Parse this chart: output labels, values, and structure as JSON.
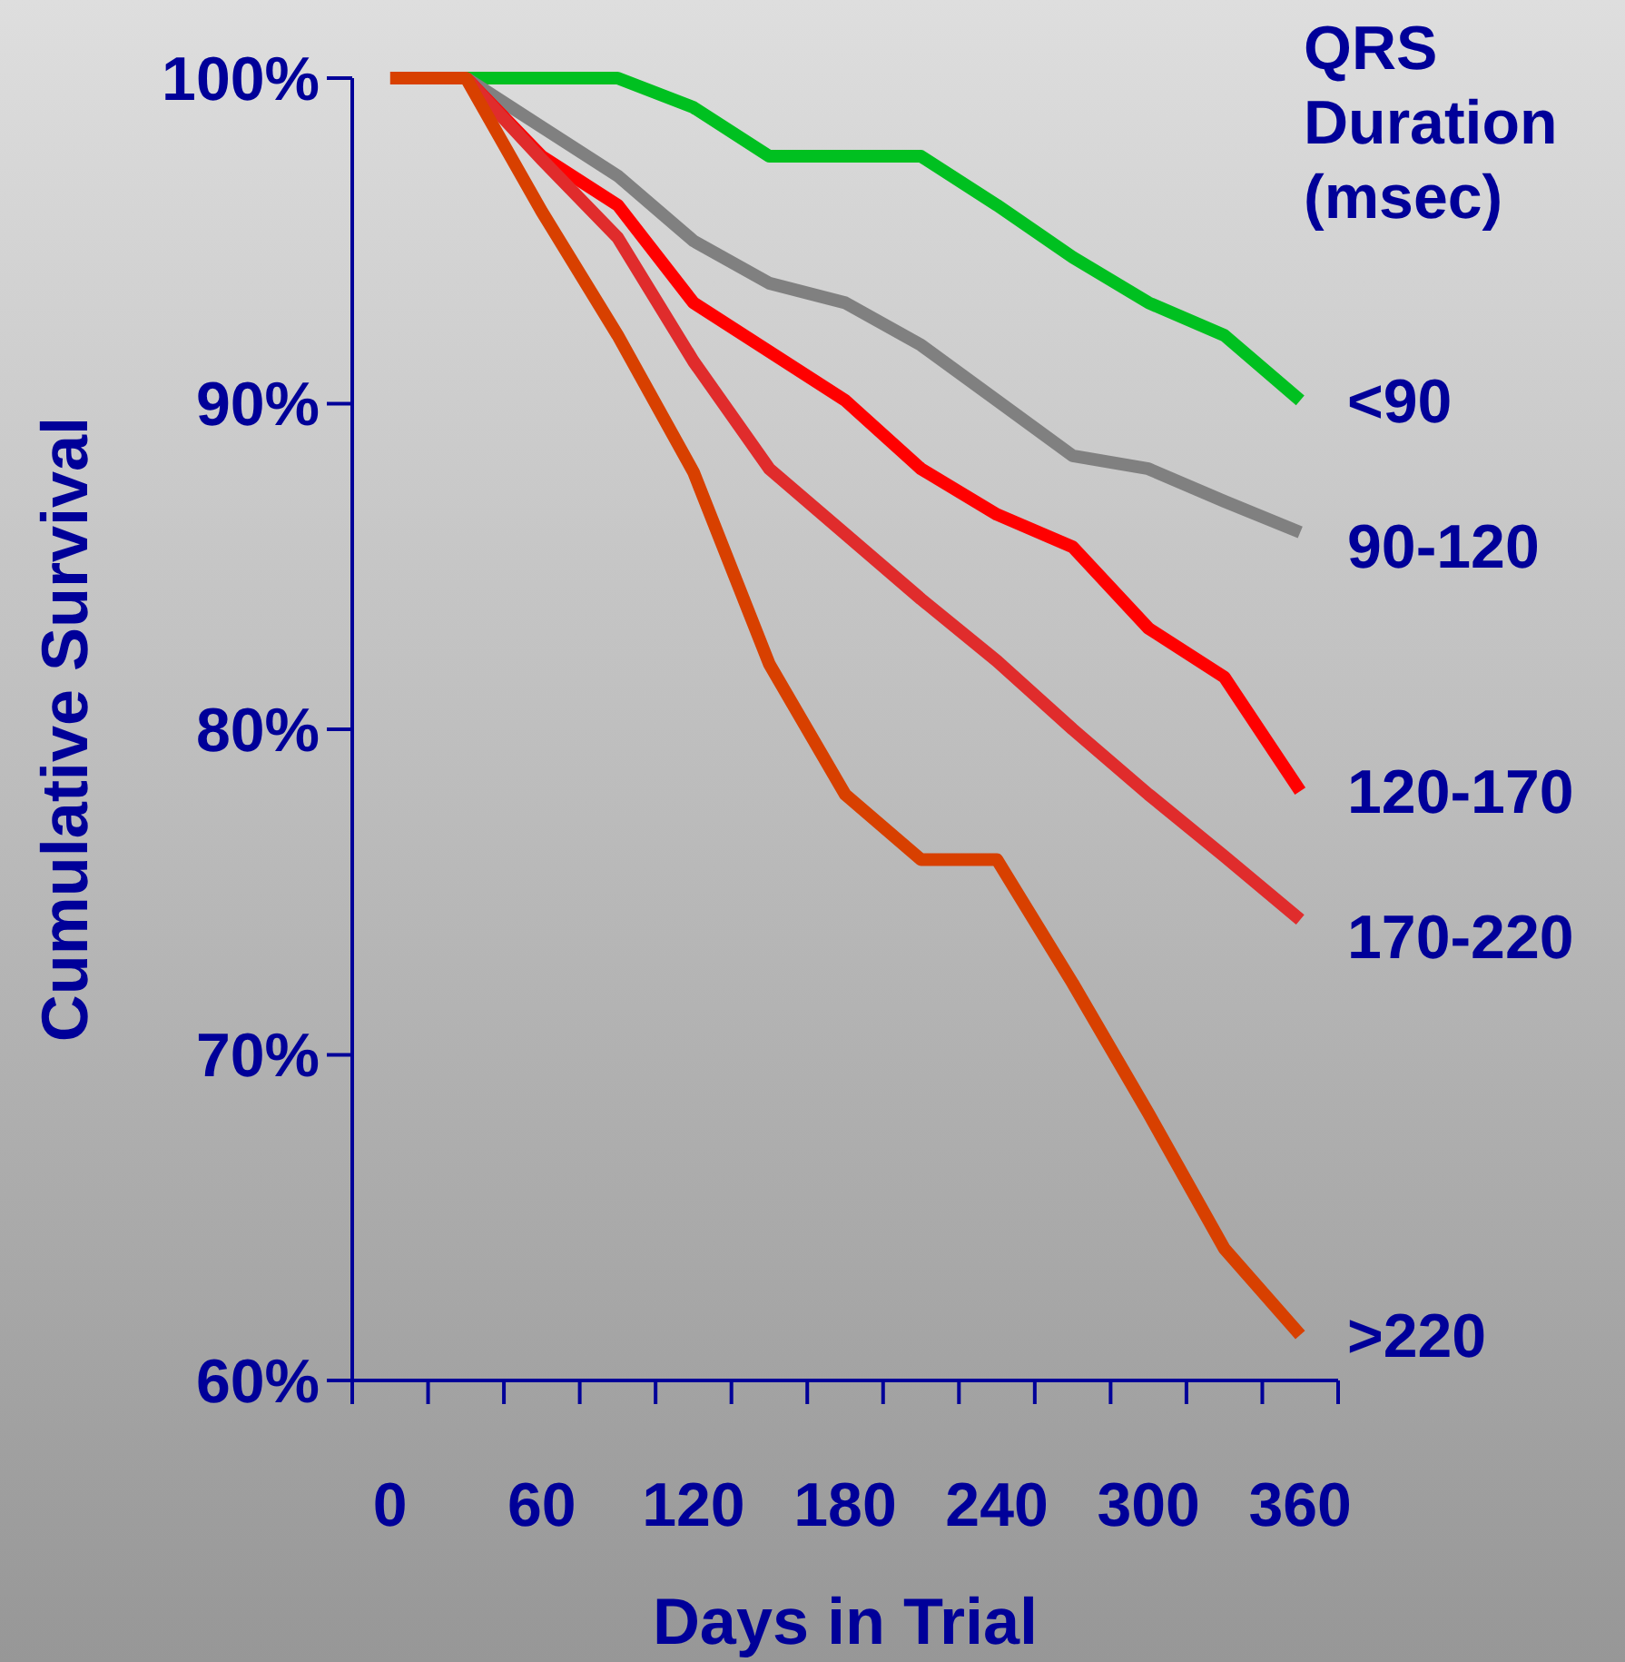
{
  "chart_data": {
    "type": "line",
    "xlabel": "Days in Trial",
    "ylabel": "Cumulative Survival",
    "legend_title": "QRS Duration (msec)",
    "categories": [
      "0",
      null,
      "60",
      null,
      "120",
      null,
      "180",
      null,
      "240",
      null,
      "300",
      null,
      "360"
    ],
    "ylim": [
      60,
      100
    ],
    "yticks": [
      {
        "value": 60,
        "label": "60%"
      },
      {
        "value": 70,
        "label": "70%"
      },
      {
        "value": 80,
        "label": "80%"
      },
      {
        "value": 90,
        "label": "90%"
      },
      {
        "value": 100,
        "label": "100%"
      }
    ],
    "grid": false,
    "marker": "none",
    "line_style": "solid",
    "series": [
      {
        "name": "<90",
        "color": "#00c020",
        "values": [
          null,
          100,
          100,
          100,
          99.1,
          97.6,
          97.6,
          97.6,
          96.1,
          94.5,
          93.1,
          92.1,
          90.1
        ]
      },
      {
        "name": "90-120",
        "color": "#808080",
        "values": [
          null,
          100,
          98.5,
          97,
          95,
          93.7,
          93.1,
          91.8,
          90.1,
          88.4,
          88,
          87,
          86.05
        ]
      },
      {
        "name": "120-170",
        "color": "#ff0000",
        "values": [
          null,
          100,
          97.6,
          96.1,
          93.1,
          91.6,
          90.1,
          88,
          86.6,
          85.6,
          83.1,
          81.6,
          78.1
        ]
      },
      {
        "name": "170-220",
        "color": "#e02c2c",
        "values": [
          null,
          100,
          97.5,
          95.1,
          91.3,
          88,
          86,
          84,
          82.1,
          80,
          78,
          76.1,
          74.15
        ]
      },
      {
        "name": ">220",
        "color": "#d84000",
        "values": [
          100,
          100,
          95.9,
          92.1,
          87.9,
          82,
          78,
          76,
          76,
          72.2,
          68.2,
          64.05,
          61.4
        ]
      }
    ]
  }
}
